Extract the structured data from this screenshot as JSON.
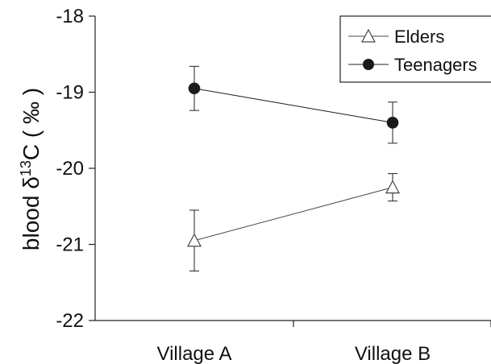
{
  "chart_data": {
    "type": "line",
    "title": "",
    "xlabel": "",
    "ylabel": {
      "prefix": "blood δ",
      "superscript": "13",
      "suffix": "C ( ‰ )"
    },
    "categories": [
      "Village A",
      "Village B"
    ],
    "ylim": [
      -22,
      -18
    ],
    "yticks": [
      "-18",
      "-19",
      "-20",
      "-21",
      "-22"
    ],
    "grid": false,
    "legend_position": "top-right",
    "series": [
      {
        "name": "Elders",
        "marker": "open-triangle",
        "color": "#444444",
        "values": [
          -20.95,
          -20.25
        ],
        "error": [
          0.4,
          0.18
        ]
      },
      {
        "name": "Teenagers",
        "marker": "filled-circle",
        "color": "#1a1a1a",
        "values": [
          -18.95,
          -19.4
        ],
        "error": [
          0.29,
          0.27
        ]
      }
    ]
  }
}
